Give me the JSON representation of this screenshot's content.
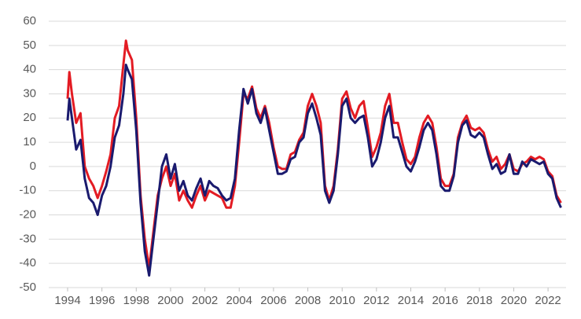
{
  "chart_data": {
    "type": "line",
    "x": [
      1994.0,
      1994.1,
      1994.25,
      1994.5,
      1994.75,
      1995.0,
      1995.25,
      1995.5,
      1995.75,
      1996.0,
      1996.25,
      1996.5,
      1996.75,
      1997.0,
      1997.25,
      1997.4,
      1997.5,
      1997.75,
      1998.0,
      1998.25,
      1998.5,
      1998.75,
      1999.0,
      1999.25,
      1999.5,
      1999.75,
      2000.0,
      2000.25,
      2000.5,
      2000.75,
      2001.0,
      2001.25,
      2001.5,
      2001.75,
      2002.0,
      2002.25,
      2002.5,
      2002.75,
      2003.0,
      2003.25,
      2003.5,
      2003.75,
      2004.0,
      2004.25,
      2004.5,
      2004.75,
      2005.0,
      2005.25,
      2005.5,
      2005.75,
      2006.0,
      2006.25,
      2006.5,
      2006.75,
      2007.0,
      2007.25,
      2007.5,
      2007.75,
      2008.0,
      2008.25,
      2008.5,
      2008.75,
      2009.0,
      2009.25,
      2009.5,
      2009.75,
      2010.0,
      2010.25,
      2010.5,
      2010.75,
      2011.0,
      2011.25,
      2011.5,
      2011.75,
      2012.0,
      2012.25,
      2012.5,
      2012.75,
      2013.0,
      2013.25,
      2013.5,
      2013.75,
      2014.0,
      2014.25,
      2014.5,
      2014.75,
      2015.0,
      2015.25,
      2015.5,
      2015.75,
      2016.0,
      2016.25,
      2016.5,
      2016.75,
      2017.0,
      2017.25,
      2017.5,
      2017.75,
      2018.0,
      2018.25,
      2018.5,
      2018.75,
      2019.0,
      2019.25,
      2019.5,
      2019.75,
      2020.0,
      2020.25,
      2020.5,
      2020.75,
      2021.0,
      2021.25,
      2021.5,
      2021.75,
      2022.0,
      2022.25,
      2022.5,
      2022.75
    ],
    "series": [
      {
        "color": "#e31b23",
        "values": [
          28,
          39,
          30,
          18,
          22,
          0,
          -5,
          -8,
          -13,
          -8,
          -2,
          5,
          20,
          25,
          42,
          52,
          48,
          44,
          20,
          -12,
          -30,
          -42,
          -27,
          -12,
          -5,
          0,
          -8,
          -3,
          -14,
          -10,
          -14,
          -17,
          -12,
          -8,
          -14,
          -10,
          -11,
          -12,
          -13,
          -17,
          -17,
          -8,
          10,
          30,
          28,
          33,
          24,
          20,
          25,
          18,
          8,
          0,
          -1,
          -1,
          5,
          6,
          11,
          14,
          25,
          30,
          25,
          18,
          -8,
          -14,
          -8,
          7,
          28,
          31,
          24,
          20,
          25,
          27,
          16,
          4,
          8,
          14,
          25,
          30,
          18,
          18,
          10,
          3,
          1,
          4,
          12,
          18,
          21,
          18,
          8,
          -5,
          -8,
          -8,
          -3,
          12,
          18,
          21,
          16,
          15,
          16,
          14,
          7,
          2,
          4,
          -1,
          1,
          5,
          -1,
          -2,
          1,
          2,
          4,
          3,
          4,
          3,
          -2,
          -4,
          -12,
          -15
        ]
      },
      {
        "color": "#1a1a6e",
        "values": [
          19,
          28,
          20,
          7,
          11,
          -5,
          -13,
          -15,
          -20,
          -12,
          -8,
          0,
          12,
          17,
          30,
          42,
          40,
          36,
          15,
          -15,
          -35,
          -45,
          -30,
          -15,
          0,
          5,
          -5,
          1,
          -10,
          -6,
          -12,
          -14,
          -9,
          -5,
          -12,
          -6,
          -8,
          -9,
          -12,
          -14,
          -13,
          -5,
          15,
          32,
          26,
          32,
          22,
          18,
          24,
          15,
          6,
          -3,
          -3,
          -2,
          3,
          4,
          10,
          12,
          22,
          26,
          20,
          13,
          -10,
          -15,
          -10,
          5,
          25,
          28,
          20,
          18,
          20,
          21,
          12,
          0,
          3,
          10,
          20,
          25,
          12,
          12,
          6,
          0,
          -2,
          2,
          8,
          15,
          18,
          15,
          5,
          -8,
          -10,
          -10,
          -4,
          10,
          17,
          19,
          13,
          12,
          14,
          12,
          5,
          -1,
          1,
          -3,
          -2,
          5,
          -3,
          -3,
          2,
          0,
          3,
          2,
          1,
          2,
          -3,
          -5,
          -13,
          -17
        ]
      }
    ],
    "xlim": [
      1992.9,
      2023.05
    ],
    "xticks": [
      1994,
      1996,
      1998,
      2000,
      2002,
      2004,
      2006,
      2008,
      2010,
      2012,
      2014,
      2016,
      2018,
      2020,
      2022
    ],
    "ylim": [
      -50,
      60
    ],
    "yticks": [
      -50,
      -40,
      -30,
      -20,
      -10,
      0,
      10,
      20,
      30,
      40,
      50,
      60
    ],
    "grid": true
  }
}
